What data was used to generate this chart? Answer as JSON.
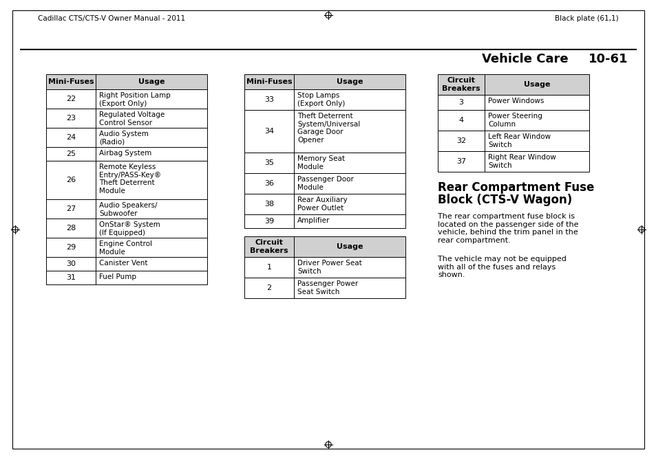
{
  "page_header_left": "Cadillac CTS/CTS-V Owner Manual - 2011",
  "page_header_right": "Black plate (61,1)",
  "section_title": "Vehicle Care",
  "section_number": "10-61",
  "table1_header": [
    "Mini-Fuses",
    "Usage"
  ],
  "table1_rows": [
    [
      "22",
      "Right Position Lamp\n(Export Only)"
    ],
    [
      "23",
      "Regulated Voltage\nControl Sensor"
    ],
    [
      "24",
      "Audio System\n(Radio)"
    ],
    [
      "25",
      "Airbag System"
    ],
    [
      "26",
      "Remote Keyless\nEntry/PASS-Key®\nTheft Deterrent\nModule"
    ],
    [
      "27",
      "Audio Speakers/\nSubwoofer"
    ],
    [
      "28",
      "OnStar® System\n(If Equipped)"
    ],
    [
      "29",
      "Engine Control\nModule"
    ],
    [
      "30",
      "Canister Vent"
    ],
    [
      "31",
      "Fuel Pump"
    ]
  ],
  "table2_header": [
    "Mini-Fuses",
    "Usage"
  ],
  "table2_rows": [
    [
      "33",
      "Stop Lamps\n(Export Only)"
    ],
    [
      "34",
      "Theft Deterrent\nSystem/Universal\nGarage Door\nOpener"
    ],
    [
      "35",
      "Memory Seat\nModule"
    ],
    [
      "36",
      "Passenger Door\nModule"
    ],
    [
      "38",
      "Rear Auxiliary\nPower Outlet"
    ],
    [
      "39",
      "Amplifier"
    ]
  ],
  "table2b_header": [
    "Circuit\nBreakers",
    "Usage"
  ],
  "table2b_rows": [
    [
      "1",
      "Driver Power Seat\nSwitch"
    ],
    [
      "2",
      "Passenger Power\nSeat Switch"
    ]
  ],
  "table3_header": [
    "Circuit\nBreakers",
    "Usage"
  ],
  "table3_rows": [
    [
      "3",
      "Power Windows"
    ],
    [
      "4",
      "Power Steering\nColumn"
    ],
    [
      "32",
      "Left Rear Window\nSwitch"
    ],
    [
      "37",
      "Right Rear Window\nSwitch"
    ]
  ],
  "section_heading_line1": "Rear Compartment Fuse",
  "section_heading_line2": "Block (CTS-V Wagon)",
  "body_text1": "The rear compartment fuse block is\nlocated on the passenger side of the\nvehicle, behind the trim panel in the\nrear compartment.",
  "body_text2": "The vehicle may not be equipped\nwith all of the fuses and relays\nshown.",
  "bg_color": "#ffffff",
  "header_gray": "#d0d0d0"
}
